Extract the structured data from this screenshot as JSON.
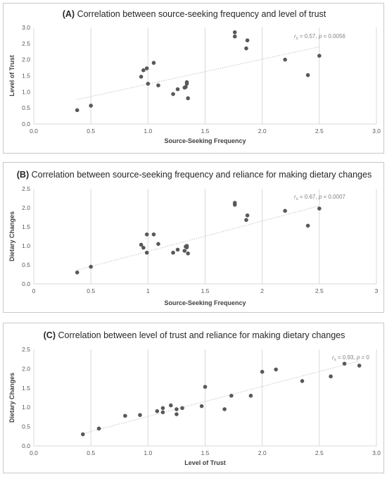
{
  "chart_data": [
    {
      "type": "scatter",
      "title_label": "(A)",
      "title_text": "Correlation between source-seeking frequency and level of trust",
      "xlabel": "Source-Seeking Frequency",
      "ylabel": "Level of Trust",
      "xlim": [
        0,
        3
      ],
      "ylim": [
        0,
        3
      ],
      "xticks": [
        "0.0",
        "0.5",
        "1.0",
        "1.5",
        "2.0",
        "2.5",
        "3.0"
      ],
      "yticks": [
        "0.0",
        "0.5",
        "1.0",
        "1.5",
        "2.0",
        "2.5",
        "3.0"
      ],
      "xtick_values": [
        0,
        0.5,
        1,
        1.5,
        2,
        2.5,
        3
      ],
      "ytick_values": [
        0,
        0.5,
        1,
        1.5,
        2,
        2.5,
        3
      ],
      "grid": "vertical",
      "annotation": {
        "r_symbol": "r",
        "r_sub": "s",
        "text": " = 0.57, ",
        "p_symbol": "p",
        "p_text": " = 0.0056"
      },
      "trendline": {
        "x": [
          0.38,
          2.5
        ],
        "y": [
          0.76,
          2.4
        ]
      },
      "points": [
        {
          "x": 0.38,
          "y": 0.43
        },
        {
          "x": 0.5,
          "y": 0.57
        },
        {
          "x": 0.94,
          "y": 1.47
        },
        {
          "x": 0.96,
          "y": 1.67
        },
        {
          "x": 0.99,
          "y": 1.73
        },
        {
          "x": 1.0,
          "y": 1.25
        },
        {
          "x": 1.05,
          "y": 1.9
        },
        {
          "x": 1.09,
          "y": 1.2
        },
        {
          "x": 1.22,
          "y": 0.93
        },
        {
          "x": 1.26,
          "y": 1.08
        },
        {
          "x": 1.32,
          "y": 1.13
        },
        {
          "x": 1.33,
          "y": 1.15
        },
        {
          "x": 1.34,
          "y": 1.25
        },
        {
          "x": 1.34,
          "y": 1.3
        },
        {
          "x": 1.35,
          "y": 0.8
        },
        {
          "x": 1.76,
          "y": 2.85
        },
        {
          "x": 1.76,
          "y": 2.72
        },
        {
          "x": 1.86,
          "y": 2.35
        },
        {
          "x": 1.87,
          "y": 2.6
        },
        {
          "x": 2.2,
          "y": 2.0
        },
        {
          "x": 2.4,
          "y": 1.52
        },
        {
          "x": 2.5,
          "y": 2.12
        }
      ]
    },
    {
      "type": "scatter",
      "title_label": "(B)",
      "title_text": "Correlation between source-seeking frequency and reliance for making dietary changes",
      "xlabel": "Source-Seeking Frequency",
      "ylabel": "Dietary Changes",
      "xlim": [
        0,
        3
      ],
      "ylim": [
        0,
        2.5
      ],
      "xticks": [
        "0",
        "0.5",
        "1",
        "1.5",
        "2",
        "2.5",
        "3"
      ],
      "yticks": [
        "0.0",
        "0.5",
        "1.0",
        "1.5",
        "2.0",
        "2.5"
      ],
      "xtick_values": [
        0,
        0.5,
        1,
        1.5,
        2,
        2.5,
        3
      ],
      "ytick_values": [
        0,
        0.5,
        1,
        1.5,
        2,
        2.5
      ],
      "grid": "vertical",
      "annotation": {
        "r_symbol": "r",
        "r_sub": "s",
        "text": " = 0.67, ",
        "p_symbol": "p",
        "p_text": " = 0.0007"
      },
      "trendline": {
        "x": [
          0.38,
          2.5
        ],
        "y": [
          0.36,
          2.05
        ]
      },
      "points": [
        {
          "x": 0.38,
          "y": 0.3
        },
        {
          "x": 0.5,
          "y": 0.45
        },
        {
          "x": 0.94,
          "y": 1.03
        },
        {
          "x": 0.96,
          "y": 0.95
        },
        {
          "x": 0.99,
          "y": 0.82
        },
        {
          "x": 0.99,
          "y": 1.3
        },
        {
          "x": 1.05,
          "y": 1.3
        },
        {
          "x": 1.09,
          "y": 1.05
        },
        {
          "x": 1.22,
          "y": 0.82
        },
        {
          "x": 1.26,
          "y": 0.9
        },
        {
          "x": 1.32,
          "y": 0.87
        },
        {
          "x": 1.33,
          "y": 0.98
        },
        {
          "x": 1.34,
          "y": 0.96
        },
        {
          "x": 1.34,
          "y": 1.0
        },
        {
          "x": 1.35,
          "y": 0.8
        },
        {
          "x": 1.76,
          "y": 2.08
        },
        {
          "x": 1.76,
          "y": 2.13
        },
        {
          "x": 1.86,
          "y": 1.68
        },
        {
          "x": 1.87,
          "y": 1.8
        },
        {
          "x": 2.2,
          "y": 1.92
        },
        {
          "x": 2.4,
          "y": 1.53
        },
        {
          "x": 2.5,
          "y": 1.98
        }
      ]
    },
    {
      "type": "scatter",
      "title_label": "(C)",
      "title_text": "Correlation between level of trust and reliance for making dietary changes",
      "xlabel": "Level of Trust",
      "ylabel": "Dietary Changes",
      "xlim": [
        0,
        3
      ],
      "ylim": [
        0,
        2.5
      ],
      "xticks": [
        "0.0",
        "0.5",
        "1.0",
        "1.5",
        "2.0",
        "2.5",
        "3.0"
      ],
      "yticks": [
        "0.0",
        "0.5",
        "1.0",
        "1.5",
        "2.0",
        "2.5"
      ],
      "xtick_values": [
        0,
        0.5,
        1,
        1.5,
        2,
        2.5,
        3
      ],
      "ytick_values": [
        0,
        0.5,
        1,
        1.5,
        2,
        2.5
      ],
      "grid": "vertical",
      "annotation": {
        "r_symbol": "r",
        "r_sub": "s",
        "text": " = 0.93, ",
        "p_symbol": "p",
        "p_text": " = 0"
      },
      "trendline": {
        "x": [
          0.43,
          2.85
        ],
        "y": [
          0.32,
          2.2
        ]
      },
      "points": [
        {
          "x": 0.43,
          "y": 0.3
        },
        {
          "x": 0.57,
          "y": 0.45
        },
        {
          "x": 0.8,
          "y": 0.78
        },
        {
          "x": 0.93,
          "y": 0.8
        },
        {
          "x": 1.08,
          "y": 0.9
        },
        {
          "x": 1.13,
          "y": 0.87
        },
        {
          "x": 1.13,
          "y": 0.98
        },
        {
          "x": 1.2,
          "y": 1.05
        },
        {
          "x": 1.25,
          "y": 0.82
        },
        {
          "x": 1.25,
          "y": 0.95
        },
        {
          "x": 1.3,
          "y": 0.98
        },
        {
          "x": 1.47,
          "y": 1.03
        },
        {
          "x": 1.5,
          "y": 1.53
        },
        {
          "x": 1.67,
          "y": 0.95
        },
        {
          "x": 1.73,
          "y": 1.3
        },
        {
          "x": 1.9,
          "y": 1.3
        },
        {
          "x": 2.0,
          "y": 1.92
        },
        {
          "x": 2.12,
          "y": 1.98
        },
        {
          "x": 2.35,
          "y": 1.68
        },
        {
          "x": 2.6,
          "y": 1.8
        },
        {
          "x": 2.72,
          "y": 2.13
        },
        {
          "x": 2.85,
          "y": 2.08
        }
      ]
    }
  ]
}
